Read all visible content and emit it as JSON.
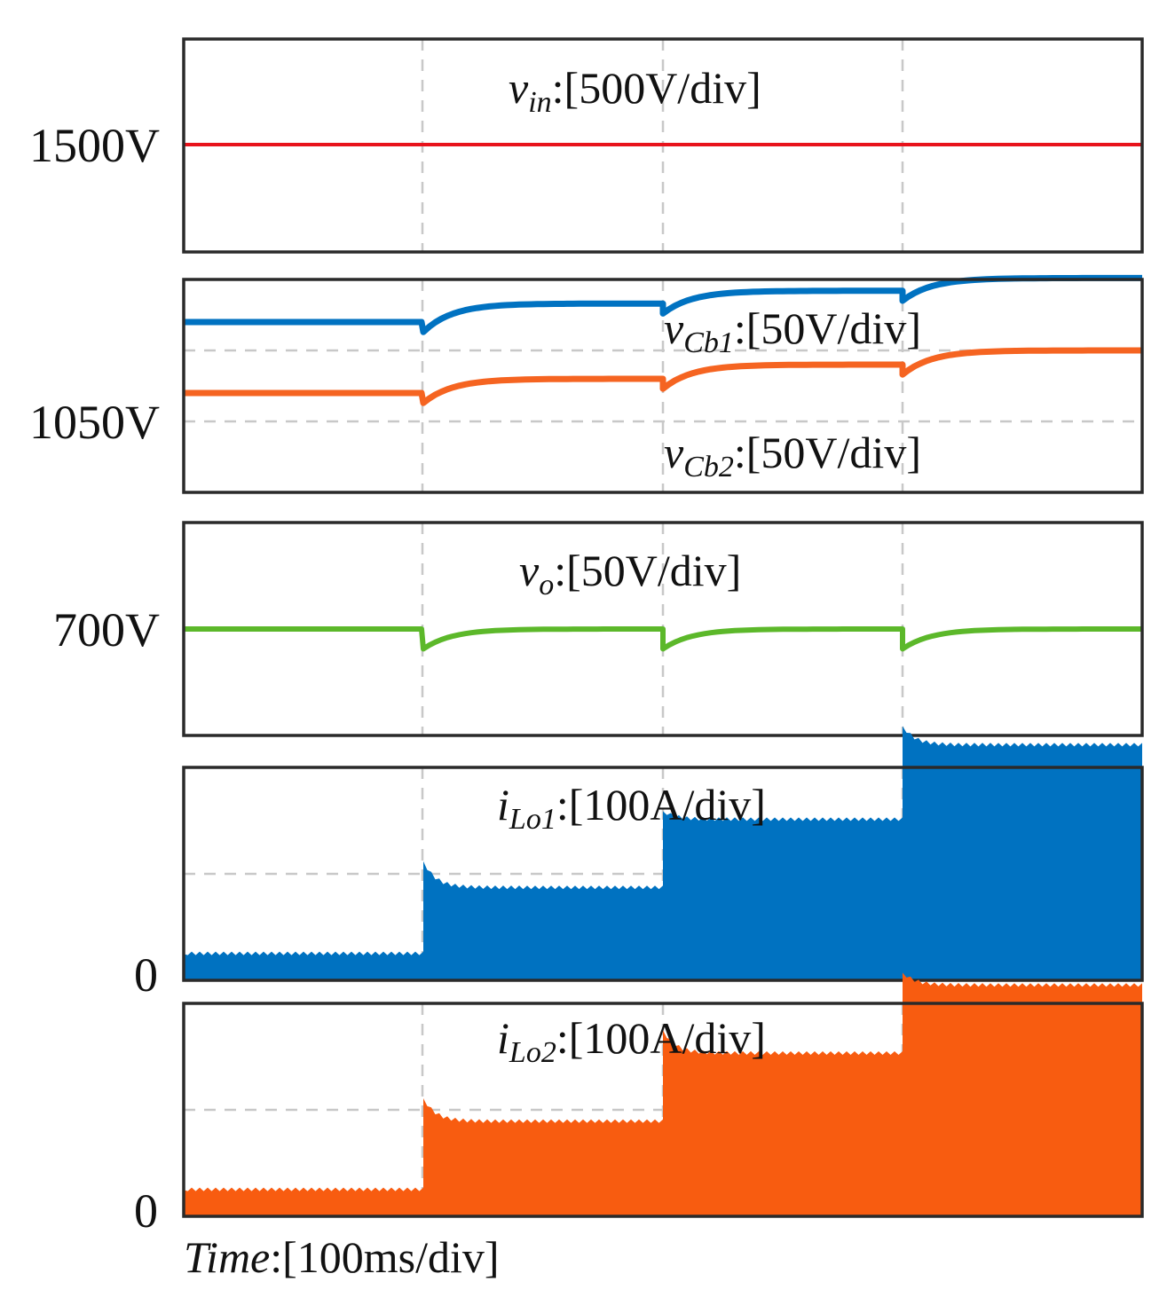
{
  "chart_data": {
    "type": "line",
    "time_axis": {
      "label_var": "Time",
      "label_scale": ":[100ms/div]",
      "divisions": 4,
      "step_times_div": [
        1,
        2,
        3
      ]
    },
    "panels": [
      {
        "id": "vin",
        "var_base": "v",
        "var_sub": "in",
        "scale": ":[500V/div]",
        "y_tick_label": "1500V",
        "color": "#e8131b",
        "type": "line",
        "series": [
          {
            "name": "v_in",
            "points": [
              [
                0,
                1500
              ],
              [
                4,
                1500
              ]
            ]
          }
        ]
      },
      {
        "id": "vcb",
        "y_tick_label": "1050V",
        "type": "line",
        "series": [
          {
            "name": "v_Cb1",
            "var_base": "v",
            "var_sub": "Cb1",
            "scale": ":[50V/div]",
            "color": "#0072c1",
            "steady": [
              1120,
              1133,
              1142,
              1151
            ],
            "dip": 7
          },
          {
            "name": "v_Cb2",
            "var_base": "v",
            "var_sub": "Cb2",
            "scale": ":[50V/div]",
            "color": "#f56421",
            "steady": [
              1070,
              1080,
              1090,
              1100
            ],
            "dip": 7
          }
        ]
      },
      {
        "id": "vo",
        "var_base": "v",
        "var_sub": "o",
        "scale": ":[50V/div]",
        "y_tick_label": "700V",
        "color": "#5cb82a",
        "type": "line",
        "series": [
          {
            "name": "v_o",
            "steady": [
              700,
              700,
              700,
              700
            ],
            "dip": 14
          }
        ]
      },
      {
        "id": "ilo1",
        "var_base": "i",
        "var_sub": "Lo1",
        "scale": ":[100A/div]",
        "y_tick_label": "0",
        "color": "#0072c1",
        "type": "area",
        "levels": [
          24,
          86,
          150,
          220
        ],
        "overshoot": [
          0,
          25,
          8,
          18
        ]
      },
      {
        "id": "ilo2",
        "var_base": "i",
        "var_sub": "Lo2",
        "scale": ":[100A/div]",
        "y_tick_label": "0",
        "color": "#f85c10",
        "type": "area",
        "levels": [
          24,
          88,
          152,
          216
        ],
        "overshoot": [
          0,
          22,
          22,
          12
        ]
      }
    ]
  }
}
